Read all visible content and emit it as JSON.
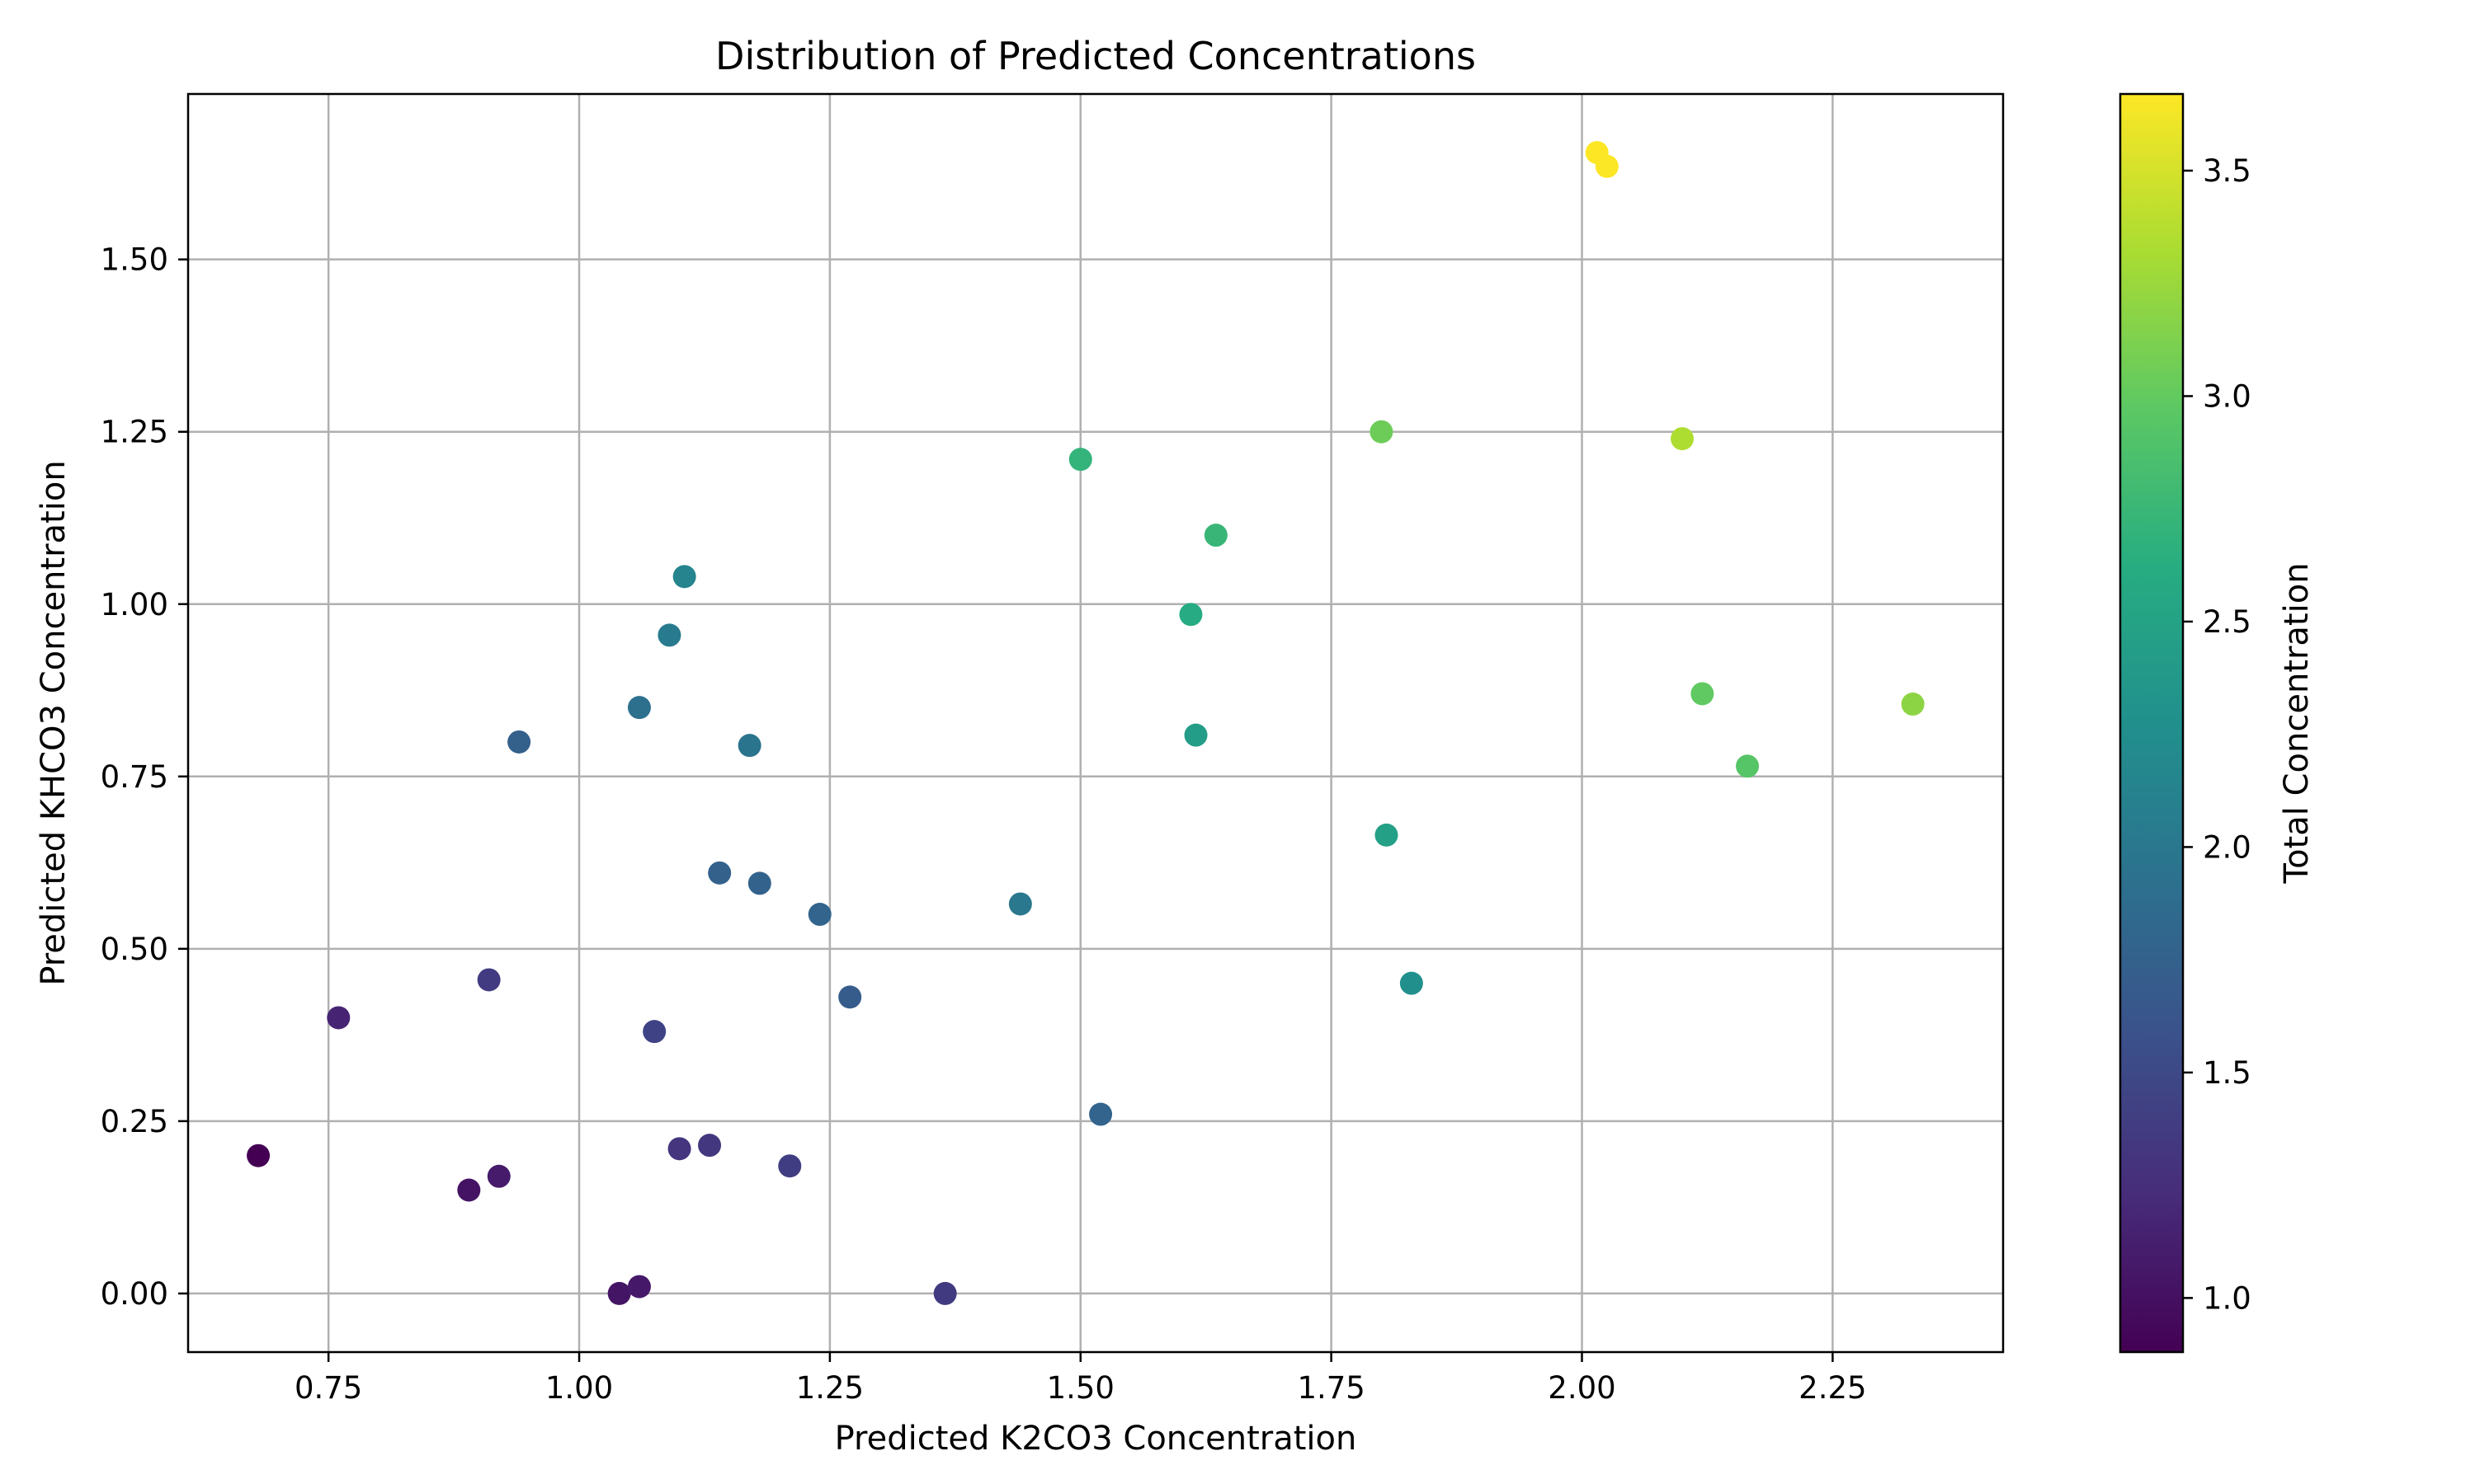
{
  "chart_data": {
    "type": "scatter",
    "title": "Distribution of Predicted Concentrations",
    "xlabel": "Predicted K2CO3 Concentration",
    "ylabel": "Predicted KHCO3 Concentration",
    "xlim": [
      0.61,
      2.42
    ],
    "ylim": [
      -0.085,
      1.74
    ],
    "x_ticks": [
      "0.75",
      "1.00",
      "1.25",
      "1.50",
      "1.75",
      "2.00",
      "2.25"
    ],
    "y_ticks": [
      "0.00",
      "0.25",
      "0.50",
      "0.75",
      "1.00",
      "1.25",
      "1.50"
    ],
    "grid": true,
    "colorbar": {
      "label": "Total Concentration",
      "range": [
        0.88,
        3.67
      ],
      "ticks": [
        "1.0",
        "1.5",
        "2.0",
        "2.5",
        "3.0",
        "3.5"
      ],
      "colormap": "viridis"
    },
    "points": [
      {
        "x": 0.68,
        "y": 0.2,
        "c": 0.88
      },
      {
        "x": 0.76,
        "y": 0.4,
        "c": 1.16
      },
      {
        "x": 0.89,
        "y": 0.15,
        "c": 1.03
      },
      {
        "x": 0.91,
        "y": 0.455,
        "c": 1.37
      },
      {
        "x": 0.92,
        "y": 0.17,
        "c": 1.09
      },
      {
        "x": 0.94,
        "y": 0.8,
        "c": 1.74
      },
      {
        "x": 1.04,
        "y": 0.0,
        "c": 1.04
      },
      {
        "x": 1.06,
        "y": 0.01,
        "c": 1.07
      },
      {
        "x": 1.06,
        "y": 0.85,
        "c": 1.91
      },
      {
        "x": 1.075,
        "y": 0.38,
        "c": 1.45
      },
      {
        "x": 1.09,
        "y": 0.955,
        "c": 2.04
      },
      {
        "x": 1.1,
        "y": 0.21,
        "c": 1.31
      },
      {
        "x": 1.105,
        "y": 1.04,
        "c": 2.14
      },
      {
        "x": 1.13,
        "y": 0.215,
        "c": 1.34
      },
      {
        "x": 1.14,
        "y": 0.61,
        "c": 1.75
      },
      {
        "x": 1.17,
        "y": 0.795,
        "c": 1.96
      },
      {
        "x": 1.18,
        "y": 0.595,
        "c": 1.77
      },
      {
        "x": 1.21,
        "y": 0.185,
        "c": 1.39
      },
      {
        "x": 1.24,
        "y": 0.55,
        "c": 1.79
      },
      {
        "x": 1.27,
        "y": 0.43,
        "c": 1.7
      },
      {
        "x": 1.365,
        "y": 0.0,
        "c": 1.36
      },
      {
        "x": 1.44,
        "y": 0.565,
        "c": 2.0
      },
      {
        "x": 1.5,
        "y": 1.21,
        "c": 2.71
      },
      {
        "x": 1.52,
        "y": 0.26,
        "c": 1.78
      },
      {
        "x": 1.61,
        "y": 0.985,
        "c": 2.6
      },
      {
        "x": 1.615,
        "y": 0.81,
        "c": 2.43
      },
      {
        "x": 1.635,
        "y": 1.1,
        "c": 2.74
      },
      {
        "x": 1.8,
        "y": 1.25,
        "c": 3.05
      },
      {
        "x": 1.805,
        "y": 0.665,
        "c": 2.47
      },
      {
        "x": 1.83,
        "y": 0.45,
        "c": 2.28
      },
      {
        "x": 2.015,
        "y": 1.655,
        "c": 3.67
      },
      {
        "x": 2.025,
        "y": 1.635,
        "c": 3.66
      },
      {
        "x": 2.1,
        "y": 1.24,
        "c": 3.34
      },
      {
        "x": 2.12,
        "y": 0.87,
        "c": 2.99
      },
      {
        "x": 2.165,
        "y": 0.765,
        "c": 2.93
      },
      {
        "x": 2.33,
        "y": 0.855,
        "c": 3.19
      }
    ]
  }
}
